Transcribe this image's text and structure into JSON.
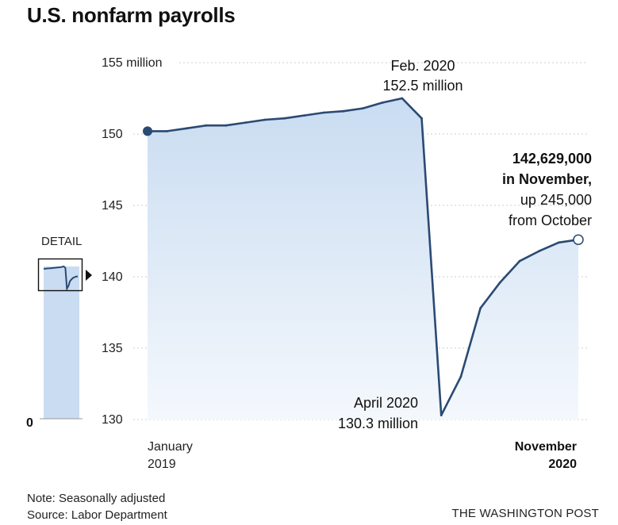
{
  "title": "U.S. nonfarm payrolls",
  "detail_label": "DETAIL",
  "detail_zero_label": "0",
  "note_line1": "Note: Seasonally adjusted",
  "note_line2": "Source: Labor Department",
  "credit": "THE WASHINGTON POST",
  "colors": {
    "line": "#2b4a73",
    "fill_top": "#c9dcf1",
    "fill_bottom": "#f4f8fd",
    "grid": "#cccccc"
  },
  "chart_data": {
    "type": "area",
    "unit": "million",
    "ylim": [
      130,
      155
    ],
    "yticks": [
      {
        "value": 155,
        "label": "155 million"
      },
      {
        "value": 150,
        "label": "150"
      },
      {
        "value": 145,
        "label": "145"
      },
      {
        "value": 140,
        "label": "140"
      },
      {
        "value": 135,
        "label": "135"
      },
      {
        "value": 130,
        "label": "130"
      }
    ],
    "x": [
      "2019-01",
      "2019-02",
      "2019-03",
      "2019-04",
      "2019-05",
      "2019-06",
      "2019-07",
      "2019-08",
      "2019-09",
      "2019-10",
      "2019-11",
      "2019-12",
      "2020-01",
      "2020-02",
      "2020-03",
      "2020-04",
      "2020-05",
      "2020-06",
      "2020-07",
      "2020-08",
      "2020-09",
      "2020-10",
      "2020-11"
    ],
    "values": [
      150.2,
      150.2,
      150.4,
      150.6,
      150.6,
      150.8,
      151.0,
      151.1,
      151.3,
      151.5,
      151.6,
      151.8,
      152.2,
      152.5,
      151.1,
      130.3,
      133.0,
      137.8,
      139.6,
      141.1,
      141.8,
      142.4,
      142.6
    ],
    "xtick_labels": [
      {
        "line1": "January",
        "line2": "2019",
        "bold": false
      },
      {
        "line1": "November",
        "line2": "2020",
        "bold": true
      }
    ],
    "annotations": {
      "peak": {
        "line1": "Feb. 2020",
        "line2": "152.5 million"
      },
      "trough": {
        "line1": "April 2020",
        "line2": "130.3 million"
      },
      "latest": {
        "line1": "142,629,000",
        "line2": "in November,",
        "line3": "up 245,000",
        "line4": "from October"
      }
    }
  }
}
